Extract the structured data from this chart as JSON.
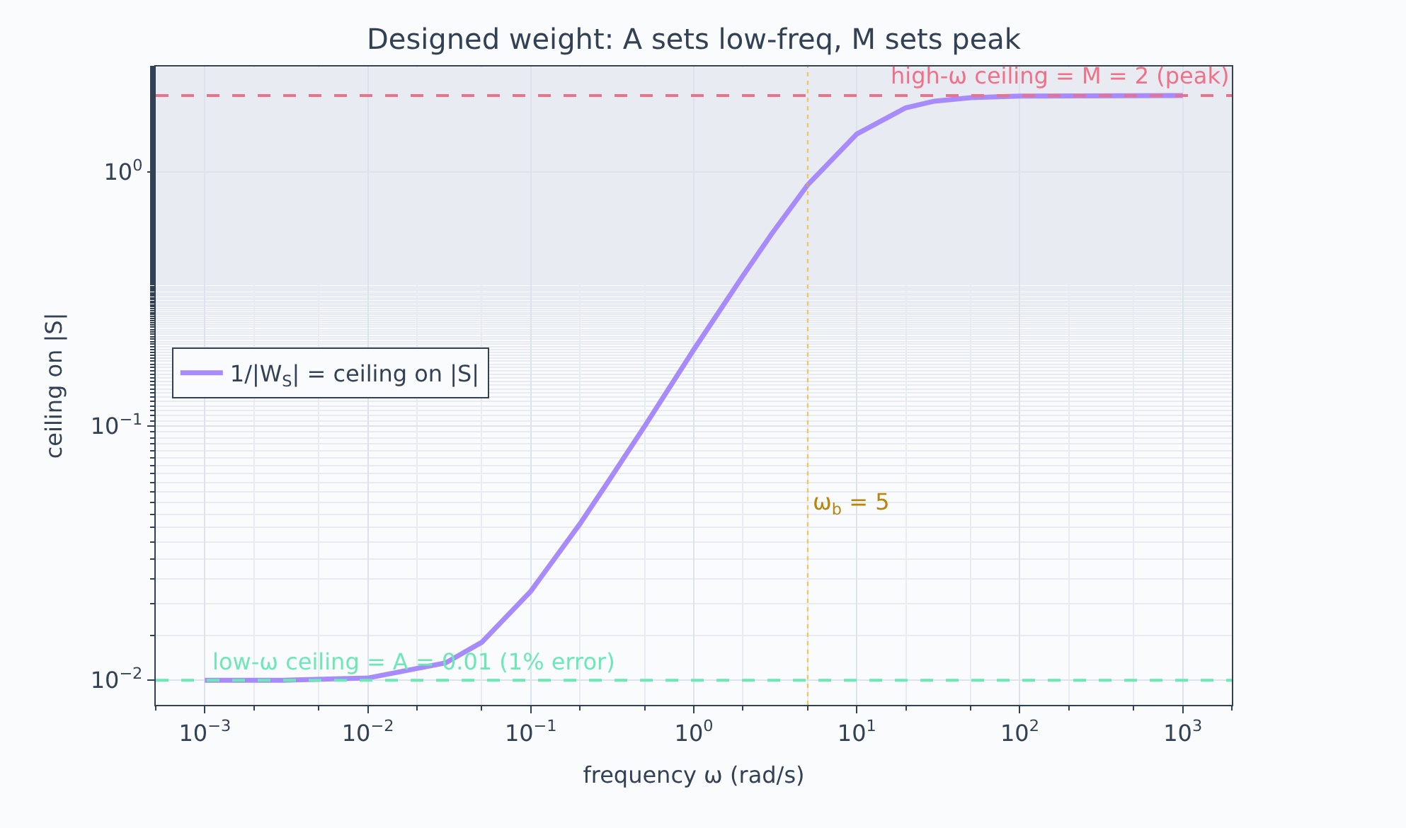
{
  "chart_data": {
    "type": "line",
    "title": "Designed weight: A sets low-freq, M sets peak",
    "xlabel": "frequency ω (rad/s)",
    "ylabel": "ceiling on |S|",
    "x": [
      0.001,
      0.003,
      0.01,
      0.03,
      0.05,
      0.1,
      0.2,
      0.3,
      0.5,
      1,
      2,
      3,
      5,
      10,
      20,
      30,
      50,
      100,
      1000
    ],
    "series": [
      {
        "name": "1/|W$_{S}$| = ceiling on |S|",
        "color": "#a78bfa",
        "values": [
          0.01,
          0.01,
          0.0102,
          0.0117,
          0.0141,
          0.0224,
          0.0412,
          0.0608,
          0.1,
          0.2,
          0.39,
          0.57,
          0.89,
          1.41,
          1.79,
          1.9,
          1.96,
          1.99,
          2.0
        ]
      }
    ],
    "log": "xy",
    "xlim": [
      0.0005,
      2000
    ],
    "ylim": [
      0.008,
      2.6
    ],
    "xticks": [
      {
        "value": 0.001,
        "label": "10$^{−3}$"
      },
      {
        "value": 0.01,
        "label": "10$^{−2}$"
      },
      {
        "value": 0.1,
        "label": "10$^{−1}$"
      },
      {
        "value": 1,
        "label": "10$^{0}$"
      },
      {
        "value": 10,
        "label": "10$^{1}$"
      },
      {
        "value": 100,
        "label": "10$^{2}$"
      },
      {
        "value": 1000,
        "label": "10$^{3}$"
      }
    ],
    "yticks": [
      {
        "value": 0.01,
        "label": "10$^{−2}$"
      },
      {
        "value": 0.1,
        "label": "10$^{−1}$"
      },
      {
        "value": 1,
        "label": "10$^{0}$"
      }
    ],
    "ref_lines": [
      {
        "axis": "y",
        "value": 2,
        "label": "high-ω ceiling = M = 2 (peak)",
        "color": "#f07088",
        "line_style": "dashed"
      },
      {
        "axis": "y",
        "value": 0.01,
        "label": "low-ω ceiling = A = 0.01 (1% error)",
        "color": "#6ee7b7",
        "line_style": "dashed"
      },
      {
        "axis": "x",
        "value": 5,
        "label": "ω$_{b}$ = 5",
        "color": "#eab308",
        "line_style": "dotted"
      }
    ],
    "grid": true,
    "legend": "left",
    "line_style": "solid",
    "marker": "none"
  }
}
